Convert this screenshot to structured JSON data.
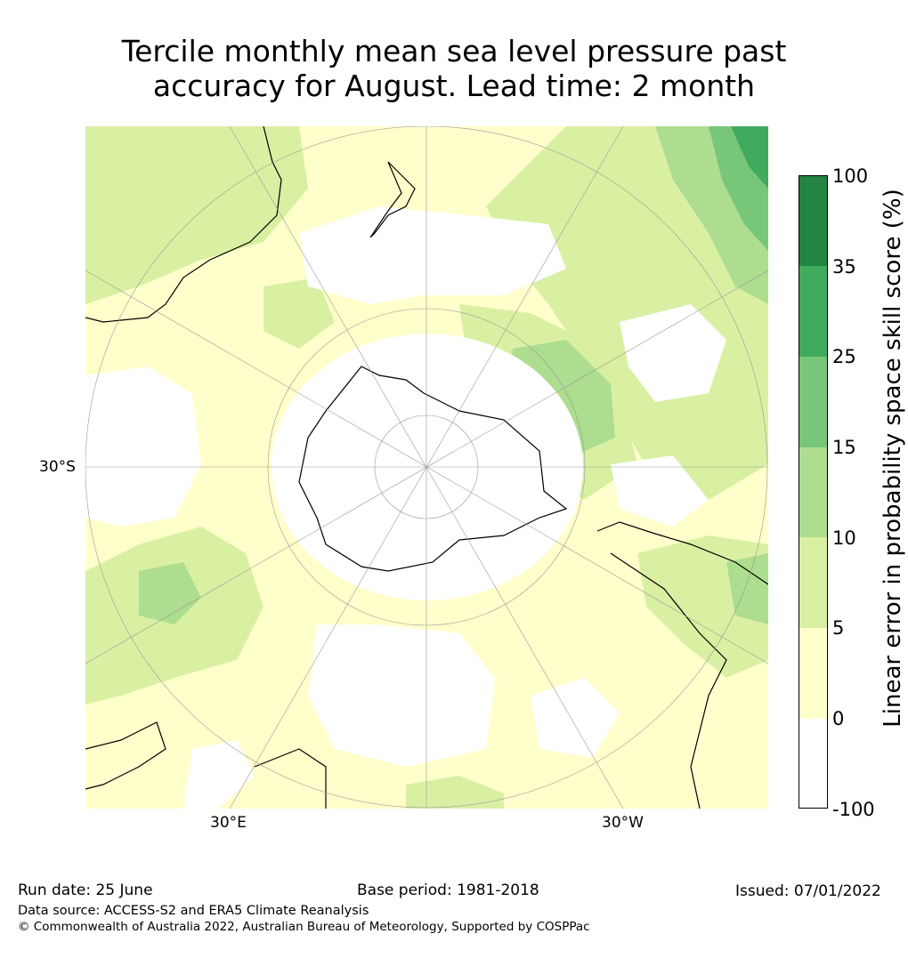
{
  "title_line1": "Tercile monthly mean sea level pressure past",
  "title_line2": "accuracy for August. Lead time: 2 month",
  "map": {
    "projection": "south-polar-stereographic",
    "lat_label": "30°S",
    "lon_labels": [
      "30°E",
      "30°W"
    ],
    "coastline_color": "#000000",
    "gridline_color": "#999999"
  },
  "colorbar": {
    "label": "Linear error in probability space skill score (%)",
    "ticks": [
      "100",
      "35",
      "25",
      "15",
      "10",
      "5",
      "0",
      "-100"
    ],
    "bins": [
      {
        "range": "-100 to 0",
        "color": "#ffffff"
      },
      {
        "range": "0 to 5",
        "color": "#ffffcc"
      },
      {
        "range": "5 to 10",
        "color": "#d9f0a3"
      },
      {
        "range": "10 to 15",
        "color": "#addd8e"
      },
      {
        "range": "15 to 25",
        "color": "#78c679"
      },
      {
        "range": "25 to 35",
        "color": "#41ab5d"
      },
      {
        "range": "35 to 100",
        "color": "#238443"
      }
    ]
  },
  "footer": {
    "run_date": "Run date: 25 June",
    "base_period": "Base period: 1981-2018",
    "issued": "Issued: 07/01/2022",
    "data_source": "Data source: ACCESS-S2 and ERA5 Climate Reanalysis",
    "copyright": "© Commonwealth of Australia 2022, Australian Bureau of Meteorology, Supported by COSPPac"
  }
}
